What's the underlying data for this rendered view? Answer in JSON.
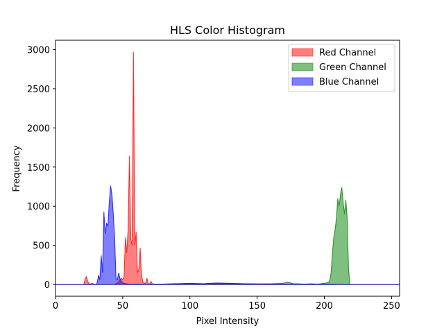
{
  "chart_data": {
    "type": "area",
    "title": "HLS Color Histogram",
    "xlabel": "Pixel Intensity",
    "ylabel": "Frequency",
    "xlim": [
      0,
      256
    ],
    "ylim": [
      -150,
      3120
    ],
    "xticks": [
      0,
      50,
      100,
      150,
      200,
      250
    ],
    "yticks": [
      0,
      500,
      1000,
      1500,
      2000,
      2500,
      3000
    ],
    "grid": false,
    "legend_position": "top-right",
    "series": [
      {
        "name": "Red Channel",
        "color": "#ff0000",
        "points": [
          [
            0,
            0
          ],
          [
            21,
            0
          ],
          [
            22,
            70
          ],
          [
            23,
            100
          ],
          [
            24,
            40
          ],
          [
            25,
            10
          ],
          [
            26,
            5
          ],
          [
            27,
            15
          ],
          [
            28,
            10
          ],
          [
            29,
            5
          ],
          [
            30,
            0
          ],
          [
            44,
            0
          ],
          [
            45,
            10
          ],
          [
            46,
            20
          ],
          [
            47,
            30
          ],
          [
            48,
            60
          ],
          [
            49,
            80
          ],
          [
            50,
            60
          ],
          [
            51,
            100
          ],
          [
            52,
            600
          ],
          [
            53,
            400
          ],
          [
            54,
            700
          ],
          [
            55,
            1640
          ],
          [
            56,
            580
          ],
          [
            57,
            500
          ],
          [
            58,
            2970
          ],
          [
            59,
            500
          ],
          [
            60,
            670
          ],
          [
            61,
            150
          ],
          [
            62,
            200
          ],
          [
            63,
            470
          ],
          [
            64,
            120
          ],
          [
            65,
            30
          ],
          [
            66,
            20
          ],
          [
            67,
            10
          ],
          [
            68,
            80
          ],
          [
            69,
            10
          ],
          [
            70,
            5
          ],
          [
            71,
            40
          ],
          [
            72,
            10
          ],
          [
            73,
            5
          ],
          [
            74,
            0
          ],
          [
            256,
            0
          ]
        ]
      },
      {
        "name": "Green Channel",
        "color": "#008000",
        "points": [
          [
            0,
            0
          ],
          [
            60,
            0
          ],
          [
            80,
            5
          ],
          [
            100,
            10
          ],
          [
            120,
            10
          ],
          [
            140,
            10
          ],
          [
            160,
            10
          ],
          [
            170,
            15
          ],
          [
            171,
            25
          ],
          [
            172,
            30
          ],
          [
            173,
            30
          ],
          [
            174,
            25
          ],
          [
            175,
            20
          ],
          [
            176,
            15
          ],
          [
            177,
            10
          ],
          [
            180,
            10
          ],
          [
            185,
            5
          ],
          [
            190,
            10
          ],
          [
            195,
            5
          ],
          [
            200,
            15
          ],
          [
            203,
            25
          ],
          [
            204,
            50
          ],
          [
            205,
            150
          ],
          [
            206,
            400
          ],
          [
            207,
            600
          ],
          [
            208,
            700
          ],
          [
            209,
            850
          ],
          [
            210,
            1100
          ],
          [
            211,
            1000
          ],
          [
            212,
            1150
          ],
          [
            213,
            1240
          ],
          [
            214,
            1050
          ],
          [
            215,
            900
          ],
          [
            216,
            1080
          ],
          [
            217,
            850
          ],
          [
            218,
            200
          ],
          [
            219,
            0
          ],
          [
            256,
            0
          ]
        ]
      },
      {
        "name": "Blue Channel",
        "color": "#0000ff",
        "points": [
          [
            0,
            0
          ],
          [
            30,
            0
          ],
          [
            31,
            20
          ],
          [
            32,
            120
          ],
          [
            33,
            60
          ],
          [
            34,
            370
          ],
          [
            35,
            150
          ],
          [
            36,
            930
          ],
          [
            37,
            650
          ],
          [
            38,
            780
          ],
          [
            39,
            750
          ],
          [
            40,
            1050
          ],
          [
            41,
            1260
          ],
          [
            42,
            1150
          ],
          [
            43,
            900
          ],
          [
            44,
            600
          ],
          [
            45,
            80
          ],
          [
            46,
            60
          ],
          [
            47,
            150
          ],
          [
            48,
            70
          ],
          [
            49,
            40
          ],
          [
            50,
            20
          ],
          [
            52,
            10
          ],
          [
            55,
            5
          ],
          [
            60,
            5
          ],
          [
            80,
            5
          ],
          [
            100,
            15
          ],
          [
            110,
            10
          ],
          [
            120,
            20
          ],
          [
            130,
            15
          ],
          [
            140,
            10
          ],
          [
            150,
            5
          ],
          [
            170,
            5
          ],
          [
            200,
            5
          ],
          [
            220,
            0
          ],
          [
            256,
            0
          ]
        ]
      }
    ]
  }
}
